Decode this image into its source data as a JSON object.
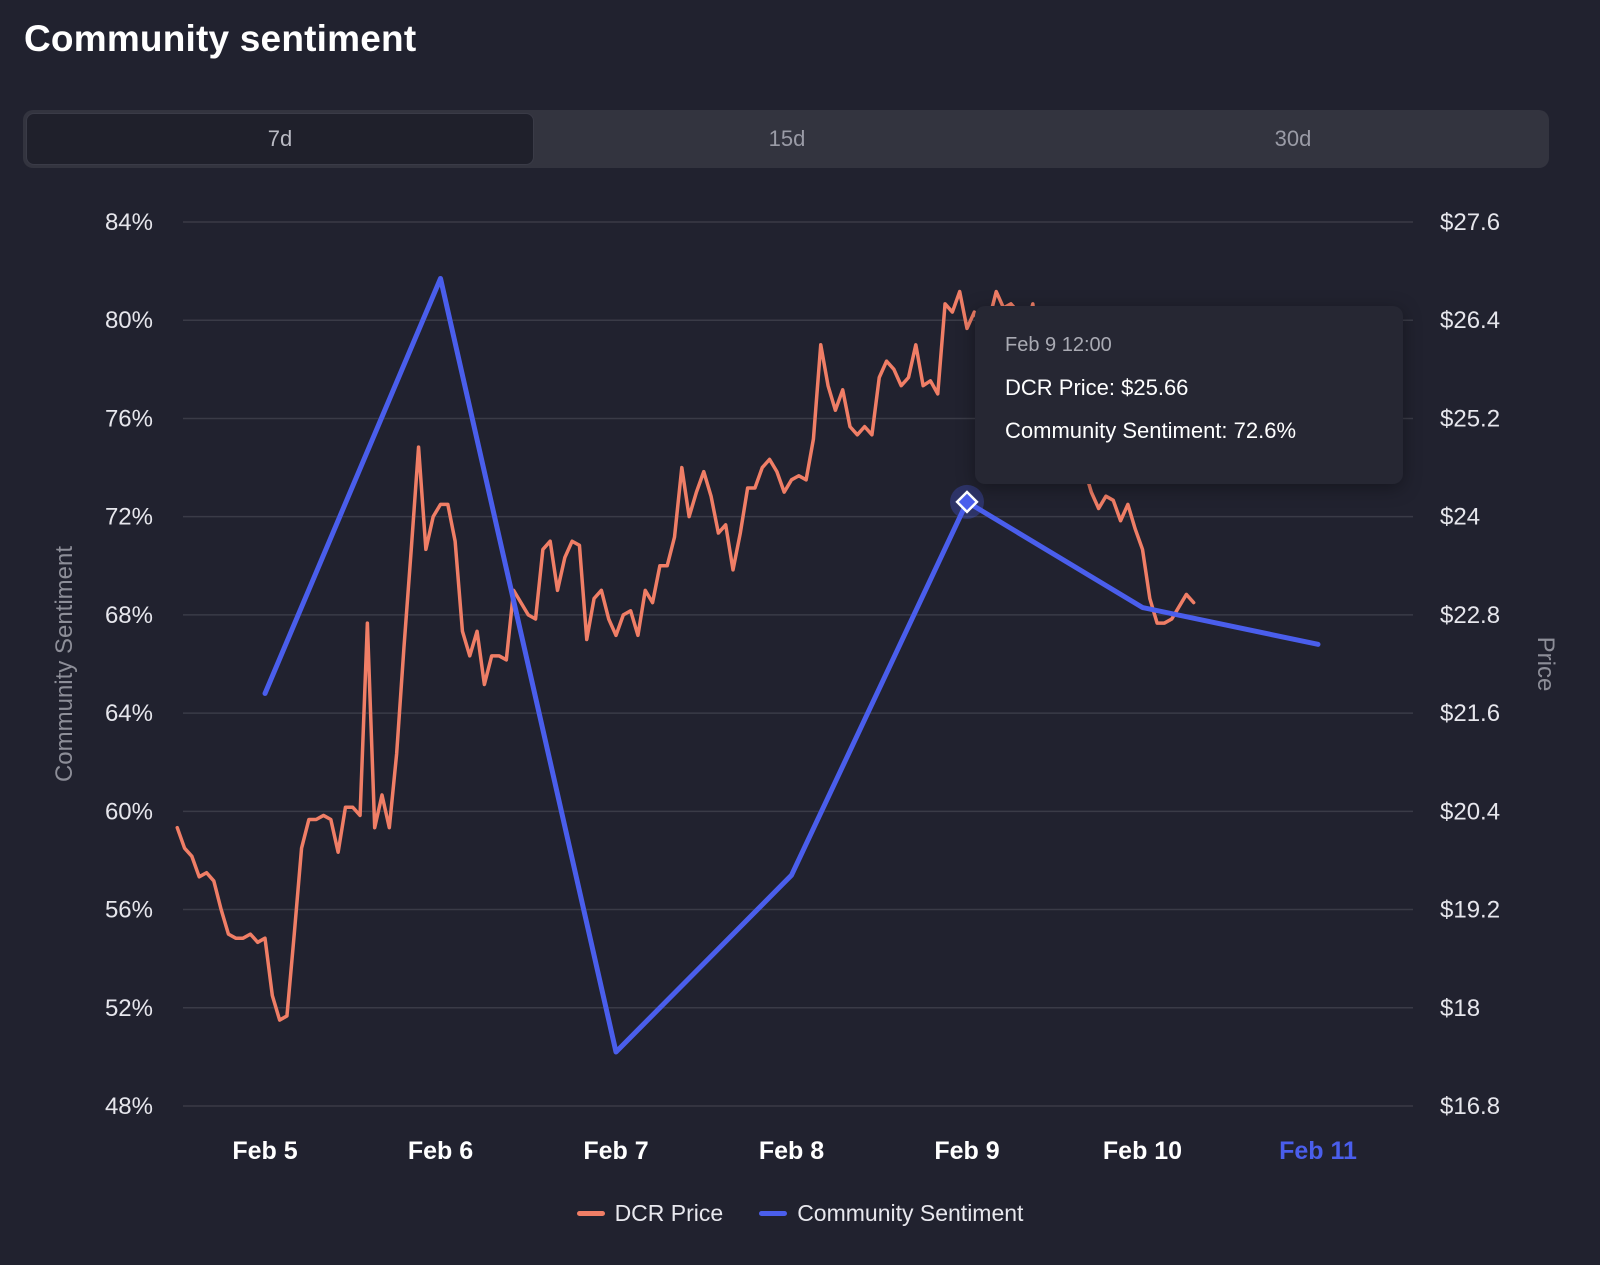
{
  "page": {
    "title": "Community sentiment",
    "tabs": [
      {
        "label": "7d",
        "active": true
      },
      {
        "label": "15d",
        "active": false
      },
      {
        "label": "30d",
        "active": false
      }
    ]
  },
  "colors": {
    "background": "#21222f",
    "price_line": "#f07e66",
    "sentiment_line": "#4a5eec",
    "grid": "#3a3b47",
    "highlight_tick": "#4a5eec"
  },
  "tooltip": {
    "date": "Feb 9 12:00",
    "price_label": "DCR Price: $25.66",
    "sentiment_label": "Community Sentiment: 72.6%"
  },
  "legend": [
    {
      "name": "DCR Price",
      "color": "#f07e66"
    },
    {
      "name": "Community Sentiment",
      "color": "#4a5eec"
    }
  ],
  "chart_data": {
    "type": "line",
    "title": "",
    "xlabel": "",
    "ylabel_left": "Community Sentiment",
    "ylabel_right": "Price",
    "xlim": [
      "Feb 4 12:00",
      "Feb 11 12:00"
    ],
    "x_ticks": [
      "Feb 5",
      "Feb 6",
      "Feb 7",
      "Feb 8",
      "Feb 9",
      "Feb 10",
      "Feb 11"
    ],
    "highlighted_x_tick": "Feb 11",
    "y_left_ticks": [
      "84%",
      "80%",
      "76%",
      "72%",
      "68%",
      "64%",
      "60%",
      "56%",
      "52%",
      "48%"
    ],
    "y_left_range": [
      48,
      84
    ],
    "y_right_ticks": [
      "$27.6",
      "$26.4",
      "$25.2",
      "$24",
      "$22.8",
      "$21.6",
      "$20.4",
      "$19.2",
      "$18",
      "$16.8"
    ],
    "y_right_range": [
      16.8,
      27.6
    ],
    "grid": true,
    "legend_position": "bottom-center",
    "series": [
      {
        "name": "Community Sentiment",
        "axis": "left",
        "unit": "%",
        "x": [
          "Feb 5",
          "Feb 6",
          "Feb 7",
          "Feb 8",
          "Feb 9",
          "Feb 10",
          "Feb 11"
        ],
        "values": [
          64.8,
          81.7,
          50.2,
          57.4,
          72.6,
          68.3,
          66.8
        ]
      },
      {
        "name": "DCR Price",
        "axis": "right",
        "unit": "$",
        "x_start": "Feb 4 12:00",
        "x_step_hours": 1,
        "values": [
          20.2,
          19.95,
          19.85,
          19.6,
          19.65,
          19.55,
          19.2,
          18.9,
          18.85,
          18.85,
          18.9,
          18.8,
          18.85,
          18.15,
          17.85,
          17.9,
          18.9,
          19.95,
          20.3,
          20.3,
          20.35,
          20.3,
          19.9,
          20.45,
          20.45,
          20.35,
          22.7,
          20.2,
          20.6,
          20.2,
          21.1,
          22.4,
          23.6,
          24.85,
          23.6,
          24.0,
          24.15,
          24.15,
          23.7,
          22.6,
          22.3,
          22.6,
          21.95,
          22.3,
          22.3,
          22.25,
          23.1,
          22.95,
          22.8,
          22.75,
          23.6,
          23.7,
          23.1,
          23.5,
          23.7,
          23.65,
          22.5,
          23.0,
          23.1,
          22.75,
          22.55,
          22.8,
          22.85,
          22.55,
          23.1,
          22.95,
          23.4,
          23.4,
          23.75,
          24.6,
          24.0,
          24.3,
          24.55,
          24.25,
          23.8,
          23.9,
          23.35,
          23.8,
          24.35,
          24.35,
          24.6,
          24.7,
          24.55,
          24.3,
          24.45,
          24.5,
          24.45,
          24.95,
          26.1,
          25.6,
          25.3,
          25.55,
          25.1,
          25.0,
          25.1,
          25.0,
          25.7,
          25.9,
          25.8,
          25.6,
          25.7,
          26.1,
          25.6,
          25.66,
          25.5,
          26.6,
          26.5,
          26.75,
          26.3,
          26.5,
          26.3,
          26.4,
          26.75,
          26.55,
          26.6,
          26.5,
          26.25,
          26.6,
          25.7,
          25.5,
          25.55,
          25.8,
          24.45,
          24.5,
          24.6,
          24.3,
          24.1,
          24.25,
          24.2,
          23.95,
          24.15,
          23.85,
          23.6,
          23.0,
          22.7,
          22.7,
          22.75,
          22.9,
          23.05,
          22.95
        ]
      }
    ],
    "highlight_point": {
      "x": "Feb 9 12:00",
      "price": 25.66,
      "sentiment": 72.6
    }
  }
}
